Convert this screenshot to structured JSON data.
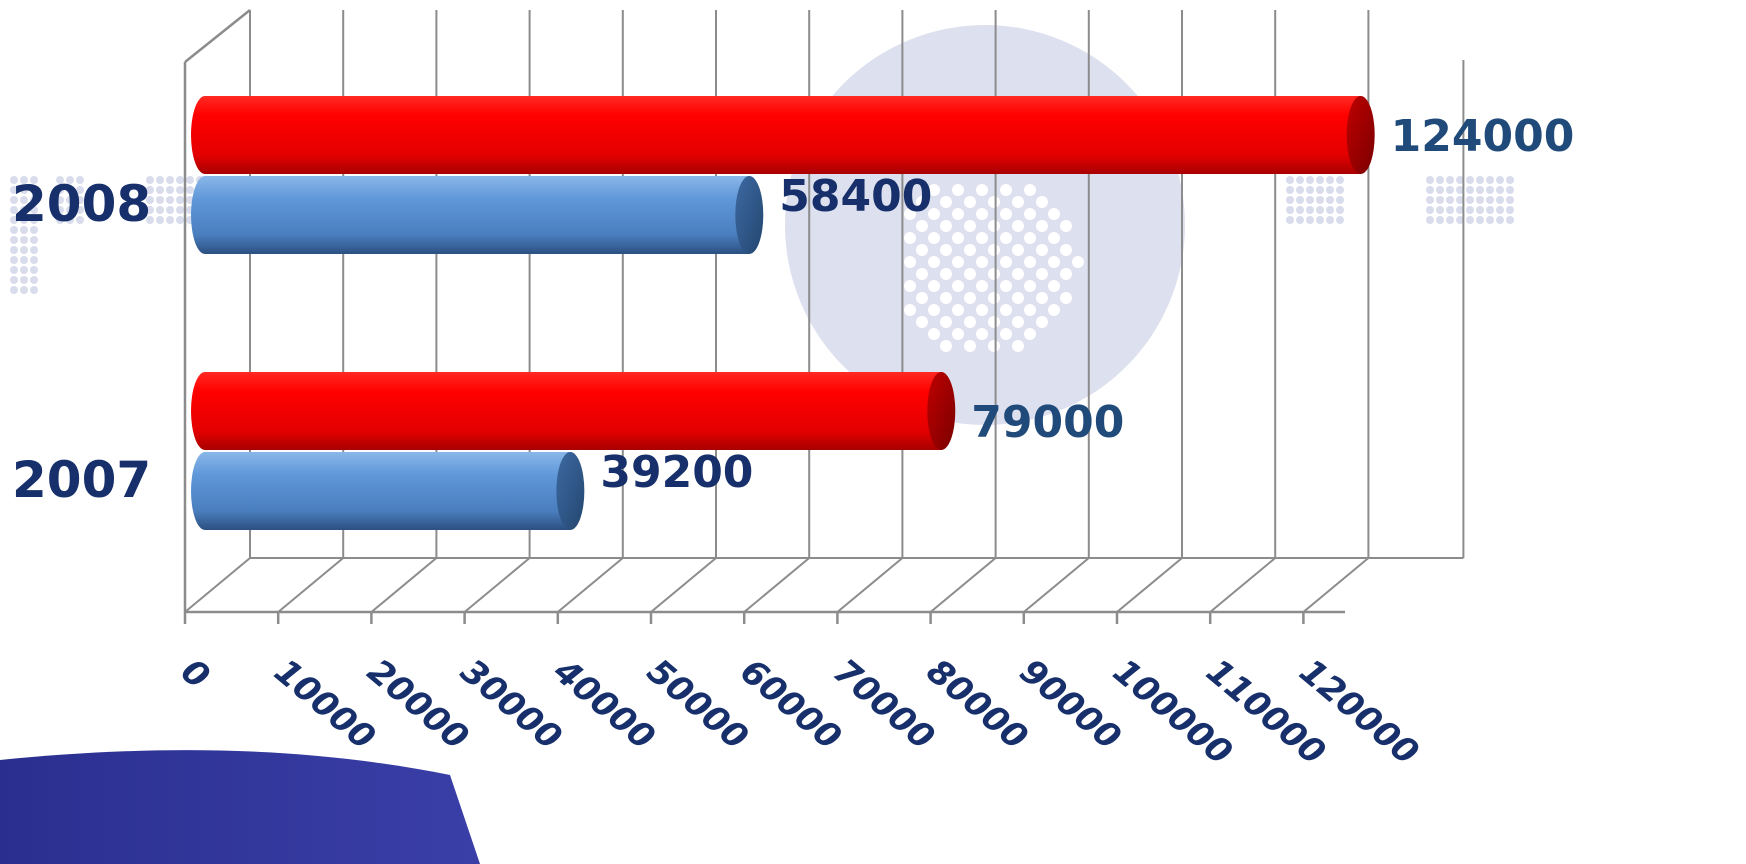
{
  "chart_data": {
    "type": "bar",
    "orientation": "horizontal",
    "style": "3d-cylinder",
    "categories": [
      "2007",
      "2008"
    ],
    "series": [
      {
        "values": [
          39200,
          58400
        ],
        "color": "#4f86c6"
      },
      {
        "values": [
          79000,
          124000
        ],
        "color": "#e8110f"
      }
    ],
    "x_ticks": [
      0,
      10000,
      20000,
      30000,
      40000,
      50000,
      60000,
      70000,
      80000,
      90000,
      100000,
      110000,
      120000
    ],
    "xlim": [
      0,
      125000
    ],
    "grid": true,
    "legend": "none",
    "title": "",
    "xlabel": "",
    "ylabel": ""
  }
}
